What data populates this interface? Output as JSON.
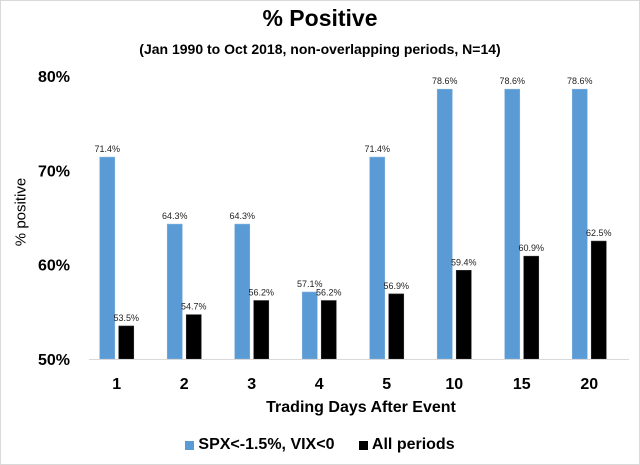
{
  "chart_data": {
    "type": "bar",
    "title": "% Positive",
    "subtitle": "(Jan 1990 to Oct 2018, non-overlapping periods, N=14)",
    "xlabel": "Trading Days After Event",
    "ylabel": "% positive",
    "ylim": [
      50,
      80
    ],
    "yticks": [
      50,
      60,
      70,
      80
    ],
    "ytick_labels": [
      "50%",
      "60%",
      "70%",
      "80%"
    ],
    "categories": [
      "1",
      "2",
      "3",
      "4",
      "5",
      "10",
      "15",
      "20"
    ],
    "series": [
      {
        "name": "SPX<-1.5%, VIX<0",
        "color": "#5b9bd5",
        "values": [
          71.4,
          64.3,
          64.3,
          57.1,
          71.4,
          78.6,
          78.6,
          78.6
        ],
        "labels": [
          "71.4%",
          "64.3%",
          "64.3%",
          "57.1%",
          "71.4%",
          "78.6%",
          "78.6%",
          "78.6%"
        ]
      },
      {
        "name": "All periods",
        "color": "#000000",
        "values": [
          53.5,
          54.7,
          56.2,
          56.2,
          56.9,
          59.4,
          60.9,
          62.5
        ],
        "labels": [
          "53.5%",
          "54.7%",
          "56.2%",
          "56.2%",
          "56.9%",
          "59.4%",
          "60.9%",
          "62.5%"
        ]
      }
    ],
    "grid": false,
    "legend_position": "bottom"
  }
}
